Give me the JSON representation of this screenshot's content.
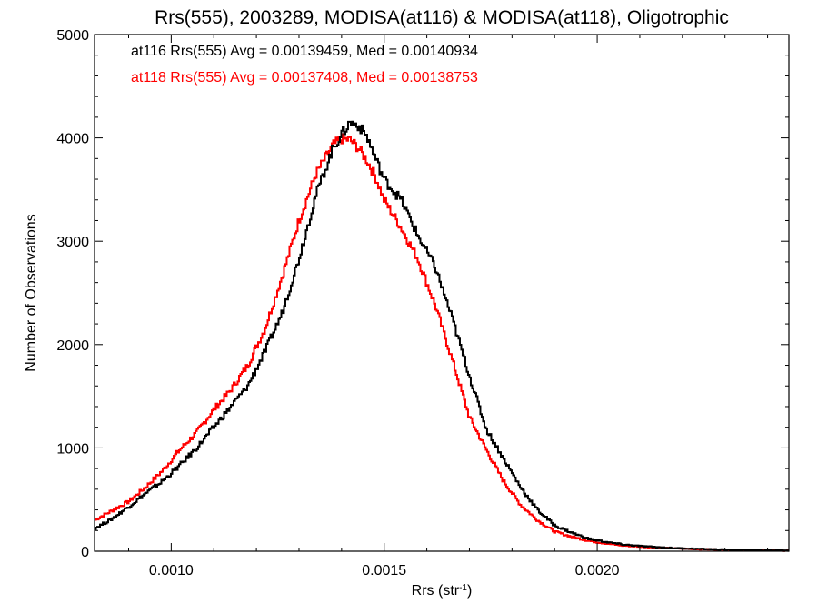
{
  "chart_data": {
    "type": "line",
    "title": "Rrs(555), 2003289, MODISA(at116) & MODISA(at118), Oligotrophic",
    "xlabel": "Rrs (str",
    "xlabel_superscript": "-1",
    "xlabel_suffix": ")",
    "ylabel": "Number of Observations",
    "xlim": [
      0.00082,
      0.00245
    ],
    "ylim": [
      0,
      5000
    ],
    "xticks": [
      0.001,
      0.0015,
      0.002
    ],
    "xtick_labels": [
      "0.0010",
      "0.0015",
      "0.0020"
    ],
    "yticks": [
      0,
      1000,
      2000,
      3000,
      4000,
      5000
    ],
    "ytick_labels": [
      "0",
      "1000",
      "2000",
      "3000",
      "4000",
      "5000"
    ],
    "grid": false,
    "step_style": "histogram",
    "annotations": [
      {
        "text": "at116 Rrs(555) Avg = 0.00139459, Med = 0.00140934",
        "color": "#000000"
      },
      {
        "text": "at118 Rrs(555) Avg = 0.00137408, Med = 0.00138753",
        "color": "#ff0000"
      }
    ],
    "x": [
      0.00082,
      0.00086,
      0.0009,
      0.00094,
      0.00098,
      0.00102,
      0.00106,
      0.0011,
      0.00114,
      0.00118,
      0.00122,
      0.00126,
      0.0013,
      0.00134,
      0.00138,
      0.0014,
      0.00142,
      0.00144,
      0.00146,
      0.00148,
      0.0015,
      0.00154,
      0.00158,
      0.00162,
      0.00166,
      0.0017,
      0.00174,
      0.00178,
      0.00182,
      0.00186,
      0.0019,
      0.00194,
      0.00198,
      0.00202,
      0.00206,
      0.0021,
      0.00214,
      0.00218,
      0.00222,
      0.00226,
      0.0023,
      0.00234,
      0.00238,
      0.00242,
      0.00245
    ],
    "series": [
      {
        "name": "at116",
        "color": "#000000",
        "values": [
          220,
          310,
          430,
          560,
          680,
          830,
          1000,
          1200,
          1400,
          1600,
          1930,
          2300,
          2830,
          3450,
          3900,
          4030,
          4150,
          4120,
          4010,
          3800,
          3600,
          3400,
          3050,
          2750,
          2250,
          1700,
          1180,
          900,
          620,
          400,
          250,
          180,
          120,
          90,
          65,
          50,
          40,
          30,
          25,
          20,
          15,
          12,
          10,
          8,
          5
        ]
      },
      {
        "name": "at118",
        "color": "#ff0000",
        "values": [
          300,
          390,
          480,
          620,
          780,
          980,
          1150,
          1370,
          1560,
          1800,
          2150,
          2650,
          3200,
          3650,
          3930,
          3990,
          3980,
          3900,
          3780,
          3620,
          3400,
          3130,
          2820,
          2380,
          1850,
          1300,
          980,
          680,
          450,
          300,
          190,
          140,
          100,
          75,
          55,
          45,
          35,
          28,
          22,
          18,
          14,
          11,
          9,
          7,
          5
        ]
      }
    ]
  }
}
